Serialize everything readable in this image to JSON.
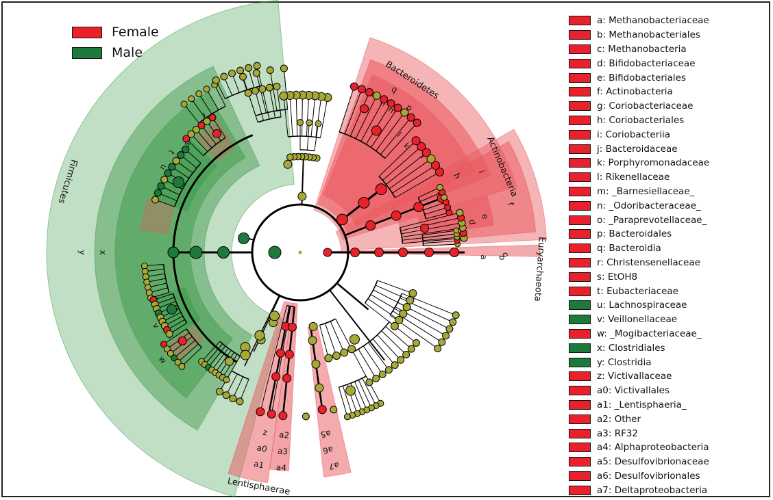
{
  "legend": {
    "female": {
      "label": "Female",
      "color": "#e8212b"
    },
    "male": {
      "label": "Male",
      "color": "#1e7a3c"
    }
  },
  "colors": {
    "female_sector": "#e9585d",
    "male_sector": "#3d9a4a",
    "neutral_node": "#a6a837",
    "edge": "#000000"
  },
  "phyla": {
    "firmicutes": {
      "label": "Firmicutes",
      "group": "male"
    },
    "bacteroidetes": {
      "label": "Bacteroidetes",
      "group": "female"
    },
    "actinobacteria": {
      "label": "Actinobacteria",
      "group": "female"
    },
    "euryarchaeota": {
      "label": "Euryarchaeota",
      "group": "female"
    },
    "lentisphaerae": {
      "label": "Lentisphaerae",
      "group": "female"
    }
  },
  "key": [
    {
      "code": "a",
      "name": "Methanobacteriaceae",
      "group": "female"
    },
    {
      "code": "b",
      "name": "Methanobacteriales",
      "group": "female"
    },
    {
      "code": "c",
      "name": "Methanobacteria",
      "group": "female"
    },
    {
      "code": "d",
      "name": "Bifidobacteriaceae",
      "group": "female"
    },
    {
      "code": "e",
      "name": "Bifidobacteriales",
      "group": "female"
    },
    {
      "code": "f",
      "name": "Actinobacteria",
      "group": "female"
    },
    {
      "code": "g",
      "name": "Coriobacteriaceae",
      "group": "female"
    },
    {
      "code": "h",
      "name": "Coriobacteriales",
      "group": "female"
    },
    {
      "code": "i",
      "name": "Coriobacteriia",
      "group": "female"
    },
    {
      "code": "j",
      "name": "Bacteroidaceae",
      "group": "female"
    },
    {
      "code": "k",
      "name": "Porphyromonadaceae",
      "group": "female"
    },
    {
      "code": "l",
      "name": "Rikenellaceae",
      "group": "female"
    },
    {
      "code": "m",
      "name": "_Barnesiellaceae_",
      "group": "female"
    },
    {
      "code": "n",
      "name": "_Odoribacteraceae_",
      "group": "female"
    },
    {
      "code": "o",
      "name": "_Paraprevotellaceae_",
      "group": "female"
    },
    {
      "code": "p",
      "name": "Bacteroidales",
      "group": "female"
    },
    {
      "code": "q",
      "name": "Bacteroidia",
      "group": "female"
    },
    {
      "code": "r",
      "name": "Christensenellaceae",
      "group": "female"
    },
    {
      "code": "s",
      "name": "EtOH8",
      "group": "female"
    },
    {
      "code": "t",
      "name": "Eubacteriaceae",
      "group": "female"
    },
    {
      "code": "u",
      "name": "Lachnospiraceae",
      "group": "male"
    },
    {
      "code": "v",
      "name": "Veillonellaceae",
      "group": "male"
    },
    {
      "code": "w",
      "name": "_Mogibacteriaceae_",
      "group": "female"
    },
    {
      "code": "x",
      "name": "Clostridiales",
      "group": "male"
    },
    {
      "code": "y",
      "name": "Clostridia",
      "group": "male"
    },
    {
      "code": "z",
      "name": "Victivallaceae",
      "group": "female"
    },
    {
      "code": "a0",
      "name": "Victivallales",
      "group": "female"
    },
    {
      "code": "a1",
      "name": "_Lentisphaeria_",
      "group": "female"
    },
    {
      "code": "a2",
      "name": "Other",
      "group": "female"
    },
    {
      "code": "a3",
      "name": "RF32",
      "group": "female"
    },
    {
      "code": "a4",
      "name": "Alphaproteobacteria",
      "group": "female"
    },
    {
      "code": "a5",
      "name": "Desulfovibrionaceae",
      "group": "female"
    },
    {
      "code": "a6",
      "name": "Desulfovibrionales",
      "group": "female"
    },
    {
      "code": "a7",
      "name": "Deltaproteobacteria",
      "group": "female"
    }
  ]
}
